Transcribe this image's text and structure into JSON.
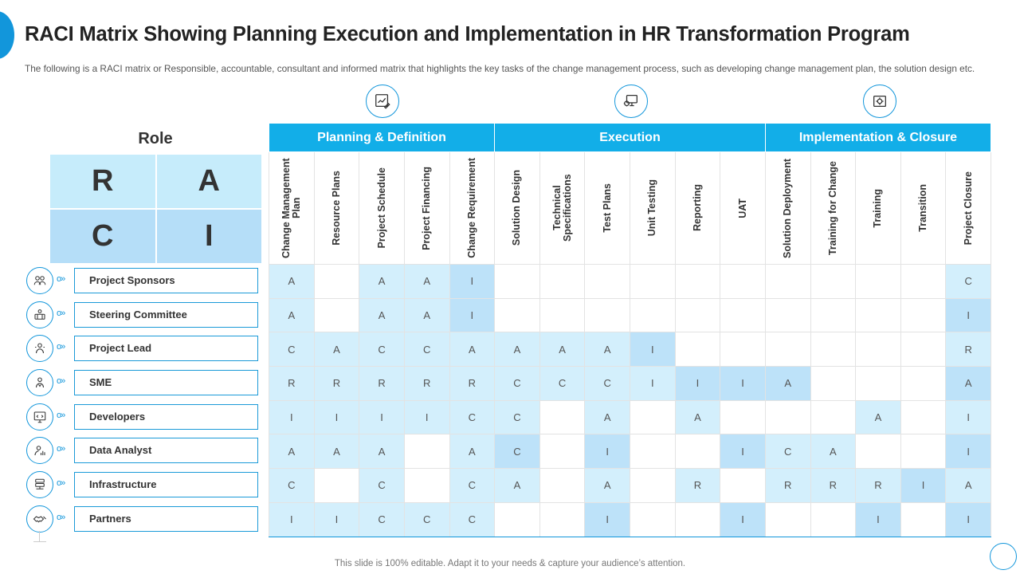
{
  "title": "RACI Matrix Showing Planning Execution and Implementation in HR Transformation Program",
  "subtitle": "The following  is a RACI matrix or Responsible, accountable, consultant and informed matrix that highlights the key tasks of the change management process, such as developing  change management plan, the solution design etc.",
  "role_label": "Role",
  "raci_letters": [
    "R",
    "A",
    "C",
    "I"
  ],
  "phases": [
    {
      "label": "Planning & Definition",
      "span": 5,
      "icon": "planning-board-icon"
    },
    {
      "label": "Execution",
      "span": 6,
      "icon": "computer-gear-icon"
    },
    {
      "label": "Implementation & Closure",
      "span": 5,
      "icon": "implementation-gear-icon"
    }
  ],
  "tasks": [
    "Change Management Plan",
    "Resource Plans",
    "Project Schedule",
    "Project Financing",
    "Change Requirement",
    "Solution Design",
    "Technical Specifications",
    "Test Plans",
    "Unit Testing",
    "Reporting",
    "UAT",
    "Solution Deployment",
    "Training for Change",
    "Training",
    "Transition",
    "Project Closure"
  ],
  "roles": [
    {
      "name": "Project Sponsors",
      "icon": "people-network-icon"
    },
    {
      "name": "Steering Committee",
      "icon": "committee-icon"
    },
    {
      "name": "Project Lead",
      "icon": "team-lead-icon"
    },
    {
      "name": "SME",
      "icon": "expert-icon"
    },
    {
      "name": "Developers",
      "icon": "code-monitor-icon"
    },
    {
      "name": "Data Analyst",
      "icon": "analyst-icon"
    },
    {
      "name": "Infrastructure",
      "icon": "server-icon"
    },
    {
      "name": "Partners",
      "icon": "handshake-icon"
    }
  ],
  "matrix": [
    [
      "A",
      "",
      "A",
      "A",
      "I",
      "",
      "",
      "",
      "",
      "",
      "",
      "",
      "",
      "",
      "",
      "C"
    ],
    [
      "A",
      "",
      "A",
      "A",
      "I",
      "",
      "",
      "",
      "",
      "",
      "",
      "",
      "",
      "",
      "",
      "I"
    ],
    [
      "C",
      "A",
      "C",
      "C",
      "A",
      "A",
      "A",
      "A",
      "I",
      "",
      "",
      "",
      "",
      "",
      "",
      "R"
    ],
    [
      "R",
      "R",
      "R",
      "R",
      "R",
      "C",
      "C",
      "C",
      "I",
      "I",
      "I",
      "A",
      "",
      "",
      "",
      "A"
    ],
    [
      "I",
      "I",
      "I",
      "I",
      "C",
      "C",
      "",
      "A",
      "",
      "A",
      "",
      "",
      "",
      "A",
      "",
      "I"
    ],
    [
      "A",
      "A",
      "A",
      "",
      "A",
      "C",
      "",
      "I",
      "",
      "",
      "I",
      "C",
      "A",
      "",
      "",
      "I"
    ],
    [
      "C",
      "",
      "C",
      "",
      "C",
      "A",
      "",
      "A",
      "",
      "R",
      "",
      "R",
      "R",
      "R",
      "I",
      "A"
    ],
    [
      "I",
      "I",
      "C",
      "C",
      "C",
      "",
      "",
      "I",
      "",
      "",
      "I",
      "",
      "",
      "I",
      "",
      "I"
    ]
  ],
  "colors": {
    "accent": "#12aee8",
    "cell_light": "#d3effc",
    "cell_dark": "#bde2f9",
    "outline": "#1296db"
  },
  "footer": "This slide is 100% editable. Adapt it to your needs & capture your audience’s attention."
}
